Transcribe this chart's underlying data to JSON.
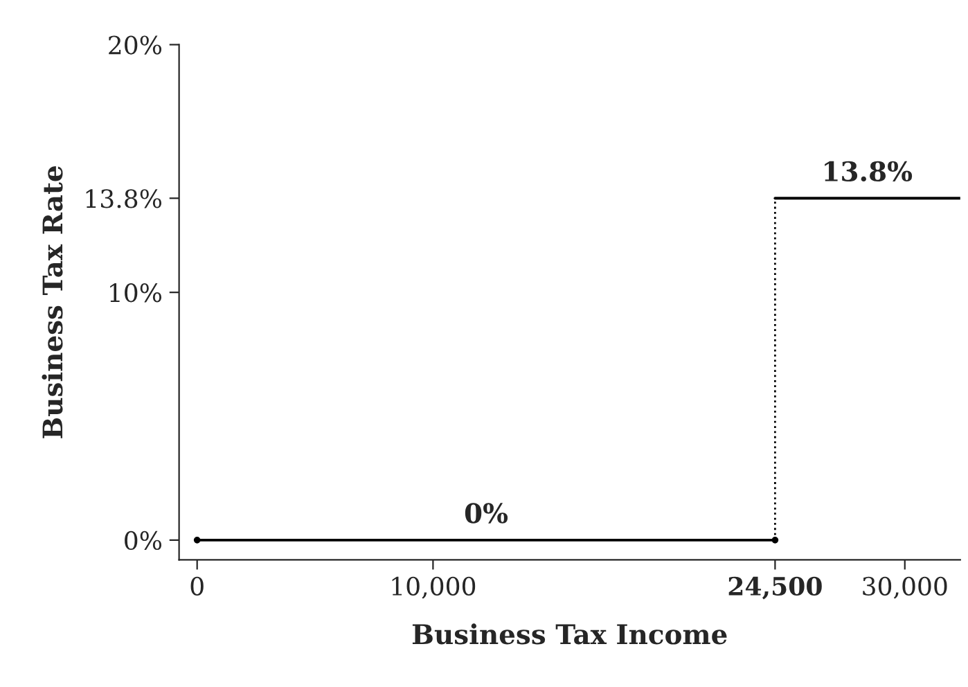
{
  "chart_data": {
    "type": "line",
    "xlabel": "Business Tax Income",
    "ylabel": "Business Tax Rate",
    "series": [
      {
        "color": "#000000",
        "x": [
          0,
          24500
        ],
        "values": [
          0,
          0
        ],
        "marker": "circle",
        "line_style": "solid"
      },
      {
        "color": "#000000",
        "x": [
          24500,
          32350
        ],
        "values": [
          13.8,
          13.8
        ],
        "marker": "none",
        "line_style": "solid"
      },
      {
        "color": "#000000",
        "x": [
          24500,
          24500
        ],
        "values": [
          0,
          13.8
        ],
        "marker": "none",
        "line_style": "dotted"
      }
    ],
    "annotations": [
      {
        "text": "0%",
        "x": 12250,
        "y": 0
      },
      {
        "text": "13.8%",
        "x": 28400,
        "y": 13.8
      }
    ],
    "xlim": [
      -765,
      32350
    ],
    "ylim": [
      -0.8,
      20
    ],
    "xticks": [
      0,
      {
        "value": 10000,
        "label": "10,000"
      },
      {
        "value": 24500,
        "label": "24,500"
      },
      {
        "value": 30000,
        "label": "30,000"
      }
    ],
    "yticks": [
      {
        "value": 0,
        "label": "0%"
      },
      {
        "value": 10,
        "label": "10%"
      },
      {
        "value": 13.8,
        "label": "13.8%"
      },
      {
        "value": 20,
        "label": "20%"
      }
    ],
    "grid": false,
    "legend": false
  }
}
